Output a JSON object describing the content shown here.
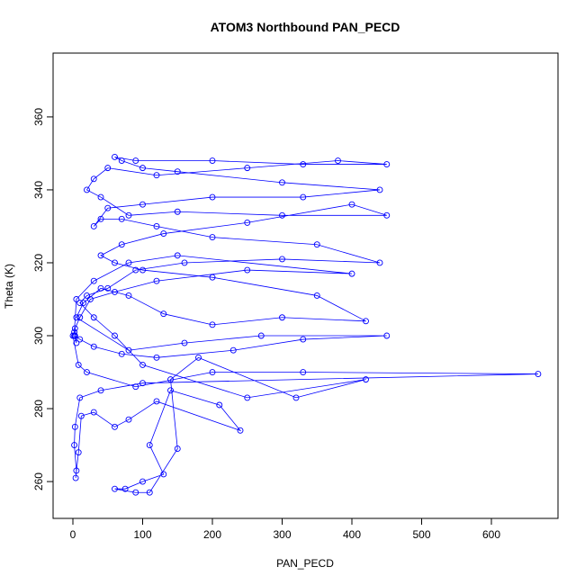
{
  "chart_data": {
    "type": "line",
    "title": "ATOM3 Northbound PAN_PECD",
    "x_label": "PAN_PECD",
    "y_label": "Theta (K)",
    "color": "#0000ff",
    "markers": true,
    "xlim": [
      -28.4,
      695.5
    ],
    "ylim": [
      249.9,
      377.5
    ],
    "xticks": [
      0,
      100,
      200,
      300,
      400,
      500,
      600
    ],
    "yticks": [
      260,
      280,
      300,
      320,
      340,
      360
    ],
    "grid": false,
    "x": [
      2,
      5,
      3,
      10,
      25,
      60,
      120,
      250,
      400,
      150,
      80,
      30,
      5,
      2,
      0,
      8,
      20,
      90,
      200,
      330,
      667,
      100,
      40,
      10,
      3,
      2,
      5,
      4,
      8,
      12,
      30,
      60,
      80,
      120,
      240,
      210,
      140,
      110,
      130,
      100,
      75,
      60,
      90,
      110,
      150,
      140,
      180,
      320,
      420,
      250,
      100,
      60,
      30,
      10,
      20,
      50,
      90,
      160,
      300,
      440,
      350,
      200,
      120,
      70,
      40,
      30,
      50,
      100,
      200,
      330,
      440,
      300,
      150,
      100,
      70,
      60,
      90,
      200,
      330,
      450,
      380,
      250,
      120,
      50,
      30,
      20,
      40,
      80,
      150,
      300,
      450,
      400,
      250,
      130,
      70,
      40,
      60,
      100,
      200,
      350,
      420,
      300,
      200,
      130,
      80,
      40,
      15,
      5,
      80,
      160,
      270,
      450,
      330,
      230,
      120,
      70,
      30,
      10,
      3
    ],
    "values": [
      300,
      298,
      302,
      305,
      310,
      312,
      315,
      318,
      317,
      322,
      320,
      315,
      310,
      301,
      300,
      292,
      290,
      286,
      290,
      290,
      289.5,
      287,
      285,
      283,
      275,
      270,
      263,
      261,
      268,
      278,
      279,
      275,
      277,
      282,
      274,
      281,
      285,
      270,
      262,
      260,
      258,
      258,
      257,
      257,
      269,
      288,
      294,
      283,
      288,
      283,
      292,
      300,
      305,
      309,
      311,
      313,
      318,
      320,
      321,
      320,
      325,
      327,
      330,
      332,
      332,
      330,
      335,
      336,
      338,
      338,
      340,
      342,
      345,
      346,
      348,
      349,
      348,
      348,
      347,
      347,
      348,
      346,
      344,
      346,
      343,
      340,
      338,
      333,
      334,
      333,
      333,
      336,
      331,
      328,
      325,
      322,
      320,
      318,
      316,
      311,
      304,
      305,
      303,
      306,
      311,
      313,
      309,
      305,
      296,
      298,
      300,
      300,
      299,
      296,
      294,
      295,
      297,
      299,
      300
    ]
  }
}
